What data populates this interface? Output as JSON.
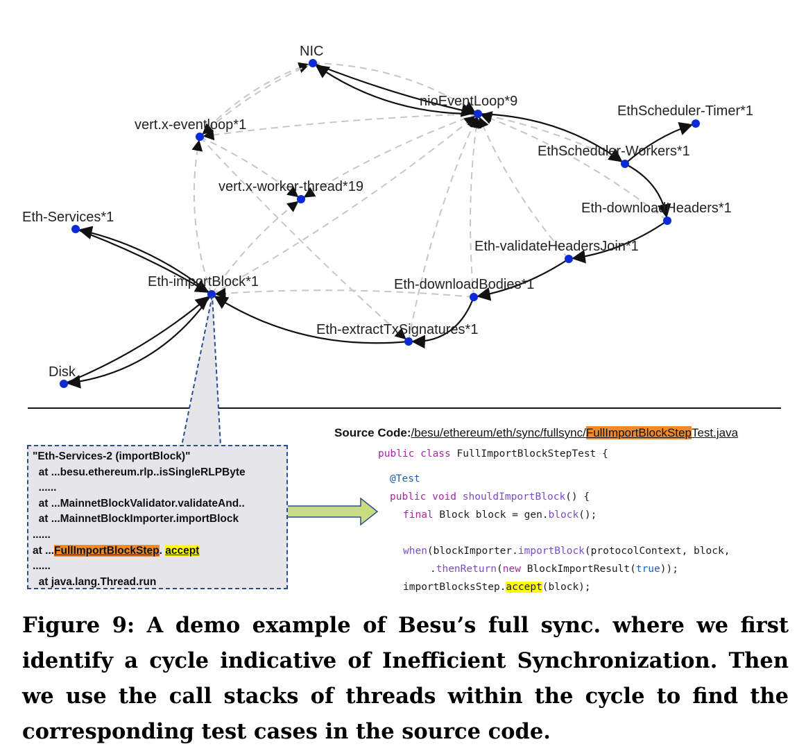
{
  "graph": {
    "nodes": [
      {
        "id": "nic",
        "label": "NIC"
      },
      {
        "id": "nio",
        "label": "nioEventLoop*9"
      },
      {
        "id": "vxe",
        "label": "vert.x-eventloop*1"
      },
      {
        "id": "vxw",
        "label": "vert.x-worker-thread*19"
      },
      {
        "id": "timer",
        "label": "EthScheduler-Timer*1"
      },
      {
        "id": "workers",
        "label": "EthScheduler-Workers*1"
      },
      {
        "id": "dlh",
        "label": "Eth-downloadHeaders*1"
      },
      {
        "id": "vhj",
        "label": "Eth-validateHeadersJoin*1"
      },
      {
        "id": "dlb",
        "label": "Eth-downloadBodies*1"
      },
      {
        "id": "services",
        "label": "Eth-Services*1"
      },
      {
        "id": "import",
        "label": "Eth-importBlock*1"
      },
      {
        "id": "extract",
        "label": "Eth-extractTxSignatures*1"
      },
      {
        "id": "disk",
        "label": "Disk"
      }
    ],
    "solid_edges": [
      {
        "from": "nio",
        "to": "nic"
      },
      {
        "from": "nic",
        "to": "nio"
      },
      {
        "from": "nio",
        "to": "workers"
      },
      {
        "from": "workers",
        "to": "timer"
      },
      {
        "from": "workers",
        "to": "dlh"
      },
      {
        "from": "dlh",
        "to": "vhj"
      },
      {
        "from": "vhj",
        "to": "dlb"
      },
      {
        "from": "dlb",
        "to": "extract"
      },
      {
        "from": "extract",
        "to": "import"
      },
      {
        "from": "import",
        "to": "services"
      },
      {
        "from": "services",
        "to": "import"
      },
      {
        "from": "import",
        "to": "disk"
      },
      {
        "from": "disk",
        "to": "import"
      }
    ],
    "dashed_edges": [
      {
        "from": "vxe",
        "to": "nic"
      },
      {
        "from": "nic",
        "to": "vxe"
      },
      {
        "from": "nio",
        "to": "vxe"
      },
      {
        "from": "vxe",
        "to": "vxw"
      },
      {
        "from": "nio",
        "to": "vxw"
      },
      {
        "from": "import",
        "to": "vxe"
      },
      {
        "from": "import",
        "to": "vxw"
      },
      {
        "from": "vxe",
        "to": "extract"
      },
      {
        "from": "import",
        "to": "nio"
      },
      {
        "from": "extract",
        "to": "nio"
      },
      {
        "from": "dlb",
        "to": "nio"
      },
      {
        "from": "dlh",
        "to": "nio"
      },
      {
        "from": "workers",
        "to": "nio"
      },
      {
        "from": "nic",
        "to": "nio"
      },
      {
        "from": "dlb",
        "to": "import"
      },
      {
        "from": "vhj",
        "to": "nio"
      }
    ],
    "colors": {
      "node": "#0a2bd6",
      "solid": "#111111",
      "dashed": "#c6c6c6",
      "callout": "#2a4d8f",
      "arrow_fill": "#c9dc82"
    }
  },
  "stack": {
    "lines": [
      "\"Eth-Services-2 (importBlock)\"",
      "  at ...besu.ethereum.rlp..isSingleRLPByte",
      "  ......",
      "  at ...MainnetBlockValidator.validateAnd..",
      "  at ...MainnetBlockImporter.importBlock",
      "......"
    ],
    "highlight_prefix": "at ...",
    "highlight_class": "FullImportBlockStep",
    "highlight_sep": ". ",
    "highlight_method": "accept",
    "tail_lines": [
      "......",
      "  at java.lang.Thread.run"
    ]
  },
  "source": {
    "label": "Source Code:",
    "path_prefix": "/besu/ethereum/eth/sync/fullsync/",
    "path_highlight": "FullImportBlockStep",
    "path_suffix": "Test.java",
    "code": {
      "l1_kw": "public class ",
      "l1_rest": "FullImportBlockStepTest {",
      "l2_ann": "@Test",
      "l3_kw": "public void ",
      "l3_fn": "shouldImportBlock",
      "l3_rest": "() {",
      "l4_kw": "final ",
      "l4_a": "Block block = gen.",
      "l4_fn": "block",
      "l4_b": "();",
      "l5_fn1": "when",
      "l5_a": "(blockImporter.",
      "l5_fn2": "importBlock",
      "l5_b": "(protocolContext, block,",
      "l6_a": ".",
      "l6_fn": "thenReturn",
      "l6_b": "(",
      "l6_kw": "new ",
      "l6_c": "BlockImportResult(",
      "l6_lit": "true",
      "l6_d": "));",
      "l7_a": "importBlocksStep.",
      "l7_hl": "accept",
      "l7_b": "(block);"
    }
  },
  "caption": "Figure 9: A demo example of Besu’s full sync. where we first identify a cycle indicative of Inefficient Synchronization. Then we use the call stacks of threads within the cycle to find the corresponding test cases in the source code."
}
